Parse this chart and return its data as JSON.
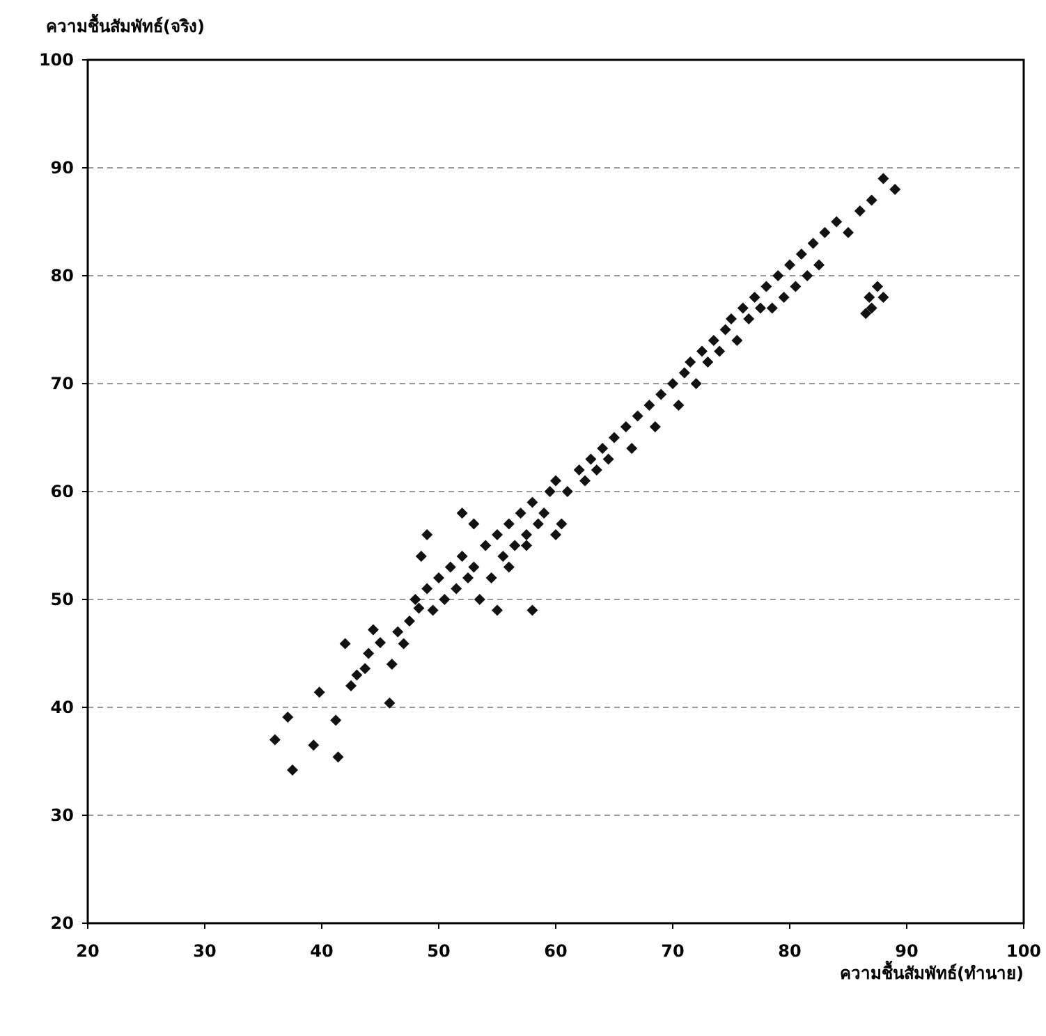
{
  "chart_data": {
    "type": "scatter",
    "xlabel": "ความชื้นสัมพัทธ์(ทำนาย)",
    "ylabel": "ความชื้นสัมพัทธ์(จริง)",
    "xlim": [
      20,
      100
    ],
    "ylim": [
      20,
      100
    ],
    "xticks": [
      20,
      30,
      40,
      50,
      60,
      70,
      80,
      90,
      100
    ],
    "yticks": [
      20,
      30,
      40,
      50,
      60,
      70,
      80,
      90,
      100
    ],
    "grid": "y",
    "marker": "diamond",
    "series": [
      {
        "color": "#111111",
        "x": [
          36,
          37.5,
          37.1,
          41.2,
          41.4,
          39.3,
          39.8,
          42,
          45.8,
          43.7,
          44.4,
          47,
          48.3,
          46,
          45,
          43,
          42.5,
          44,
          46.5,
          47.5,
          48,
          49,
          49.5,
          50,
          50.5,
          51,
          51.5,
          52,
          52.5,
          53,
          53.5,
          54,
          54.5,
          55,
          55.5,
          56,
          56.5,
          57,
          57.5,
          58,
          58.5,
          59,
          59.5,
          60,
          60.5,
          61,
          62,
          62.5,
          63,
          63.5,
          64,
          64.5,
          65,
          66,
          66.5,
          67,
          68,
          68.5,
          69,
          70,
          70.5,
          71,
          71.5,
          72,
          72.5,
          73,
          73.5,
          74,
          74.5,
          75,
          75.5,
          76,
          76.5,
          77,
          77.5,
          78,
          78.5,
          79,
          79.5,
          80,
          80.5,
          81,
          81.5,
          82,
          82.5,
          83,
          84,
          85,
          86,
          87,
          88,
          89,
          86.5,
          87,
          87.5,
          88,
          86.8,
          49,
          53,
          55,
          58,
          60,
          48.5,
          52,
          56,
          57.5
        ],
        "values": [
          37,
          34.2,
          39.1,
          38.8,
          35.4,
          36.5,
          41.4,
          45.9,
          40.4,
          43.6,
          47.2,
          45.9,
          49.2,
          44,
          46,
          43,
          42,
          45,
          47,
          48,
          50,
          51,
          49,
          52,
          50,
          53,
          51,
          54,
          52,
          53,
          50,
          55,
          52,
          56,
          54,
          57,
          55,
          58,
          56,
          59,
          57,
          58,
          60,
          61,
          57,
          60,
          62,
          61,
          63,
          62,
          64,
          63,
          65,
          66,
          64,
          67,
          68,
          66,
          69,
          70,
          68,
          71,
          72,
          70,
          73,
          72,
          74,
          73,
          75,
          76,
          74,
          77,
          76,
          78,
          77,
          79,
          77,
          80,
          78,
          81,
          79,
          82,
          80,
          83,
          81,
          84,
          85,
          84,
          86,
          87,
          89,
          88,
          76.5,
          77,
          79,
          78,
          78,
          56,
          57,
          49,
          49,
          56,
          54,
          58,
          53,
          55
        ]
      }
    ]
  }
}
